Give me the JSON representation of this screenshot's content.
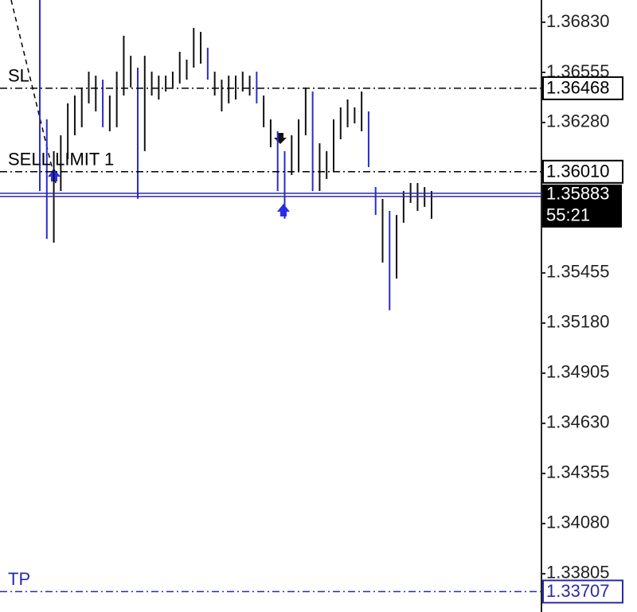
{
  "chart_data": {
    "type": "price-bars",
    "ylim": [
      1.33595,
      1.36952
    ],
    "yticks": [
      {
        "value": 1.3683,
        "label": "1.36830"
      },
      1.36555,
      {
        "value": 1.3628,
        "label": "1.36280"
      },
      1.35455,
      {
        "value": 1.3518,
        "label": "1.35180"
      },
      1.34905,
      {
        "value": 1.3463,
        "label": "1.34630"
      },
      1.34355,
      {
        "value": 1.3408,
        "label": "1.34080"
      },
      1.33805
    ],
    "color": "#111111",
    "down_color": "#2b2bd0",
    "high": [
      1.36952,
      1.36297,
      1.36123,
      1.3621,
      1.36385,
      1.36428,
      1.36472,
      1.36559,
      1.36537,
      1.36515,
      1.36428,
      1.36559,
      1.36756,
      1.36646,
      1.36581,
      1.36646,
      1.36559,
      1.36537,
      1.36537,
      1.36559,
      1.36668,
      1.36625,
      1.36799,
      1.36777,
      1.3669,
      1.36559,
      1.36515,
      1.36537,
      1.36537,
      1.36559,
      1.36537,
      1.36559,
      1.36428,
      1.36297,
      1.36232,
      1.36123,
      1.3621,
      1.36297,
      1.36472,
      1.3645,
      1.36166,
      1.36123,
      1.36297,
      1.36363,
      1.36406,
      1.36363,
      1.3645,
      1.36341,
      1.35926,
      1.35861,
      1.35795,
      1.35773,
      1.35904,
      1.35948,
      1.35948,
      1.35926,
      1.35904
    ],
    "low": [
      1.35904,
      1.35642,
      1.35621,
      1.35904,
      1.36079,
      1.3621,
      1.36254,
      1.36385,
      1.36341,
      1.36254,
      1.36232,
      1.36254,
      1.36428,
      1.36472,
      1.35861,
      1.36123,
      1.36428,
      1.36406,
      1.3645,
      1.36472,
      1.36494,
      1.36515,
      1.36581,
      1.36603,
      1.36515,
      1.36428,
      1.36341,
      1.36385,
      1.36406,
      1.3645,
      1.36428,
      1.36385,
      1.36254,
      1.36144,
      1.35904,
      1.35752,
      1.35992,
      1.36014,
      1.3621,
      1.35904,
      1.35904,
      1.3597,
      1.36014,
      1.36188,
      1.36254,
      1.36275,
      1.36232,
      1.36035,
      1.35773,
      1.35512,
      1.3525,
      1.35424,
      1.3573,
      1.35839,
      1.35795,
      1.35817,
      1.35752
    ],
    "down": [
      true,
      true,
      false,
      false,
      false,
      false,
      false,
      false,
      false,
      true,
      false,
      false,
      false,
      false,
      true,
      false,
      false,
      false,
      false,
      false,
      false,
      false,
      false,
      false,
      true,
      false,
      false,
      false,
      false,
      false,
      false,
      true,
      false,
      false,
      true,
      true,
      false,
      false,
      false,
      true,
      false,
      false,
      false,
      false,
      false,
      false,
      false,
      true,
      true,
      false,
      true,
      false,
      false,
      false,
      false,
      false,
      false
    ],
    "levels": [
      {
        "name": "SL",
        "price": 1.36468,
        "color": "#000000",
        "style": "dashdot"
      },
      {
        "name": "SELL LIMIT 1",
        "price": {
          "value": 1.3601,
          "label": "1.36010"
        },
        "color": "#000000",
        "style": "dashdot"
      },
      {
        "price": 1.35883,
        "timer": "55:21",
        "color": "#2a2aa8",
        "style": "double"
      },
      {
        "name": "TP",
        "price": 1.33707,
        "color": "#2a2aa8",
        "style": "dashdot"
      }
    ]
  }
}
